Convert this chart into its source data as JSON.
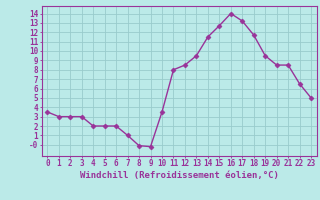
{
  "x": [
    0,
    1,
    2,
    3,
    4,
    5,
    6,
    7,
    8,
    9,
    10,
    11,
    12,
    13,
    14,
    15,
    16,
    17,
    18,
    19,
    20,
    21,
    22,
    23
  ],
  "y": [
    3.5,
    3.0,
    3.0,
    3.0,
    2.0,
    2.0,
    2.0,
    1.0,
    -0.1,
    -0.2,
    3.5,
    8.0,
    8.5,
    9.5,
    11.5,
    12.7,
    14.0,
    13.2,
    11.7,
    9.5,
    8.5,
    8.5,
    6.5,
    5.0
  ],
  "xlabel": "Windchill (Refroidissement éolien,°C)",
  "xlim": [
    -0.5,
    23.5
  ],
  "ylim": [
    -1.2,
    14.8
  ],
  "xticks": [
    0,
    1,
    2,
    3,
    4,
    5,
    6,
    7,
    8,
    9,
    10,
    11,
    12,
    13,
    14,
    15,
    16,
    17,
    18,
    19,
    20,
    21,
    22,
    23
  ],
  "yticks": [
    0,
    1,
    2,
    3,
    4,
    5,
    6,
    7,
    8,
    9,
    10,
    11,
    12,
    13,
    14
  ],
  "ytick_labels": [
    "-0",
    "1",
    "2",
    "3",
    "4",
    "5",
    "6",
    "7",
    "8",
    "9",
    "10",
    "11",
    "12",
    "13",
    "14"
  ],
  "line_color": "#993399",
  "bg_color": "#bbeae8",
  "grid_color": "#99cccc",
  "marker_size": 2.5,
  "line_width": 1.0,
  "xlabel_fontsize": 6.5,
  "tick_fontsize": 5.5
}
